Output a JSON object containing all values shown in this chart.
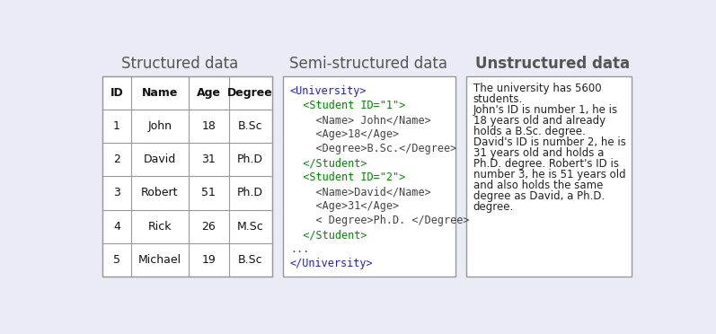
{
  "background_color": "#eaecf5",
  "title_structured": "Structured data",
  "title_semi": "Semi-structured data",
  "title_unstructured": "Unstructured data",
  "title_color": "#555555",
  "title_fontsize": 12,
  "table_headers": [
    "ID",
    "Name",
    "Age",
    "Degree"
  ],
  "table_rows": [
    [
      "1",
      "John",
      "18",
      "B.Sc"
    ],
    [
      "2",
      "David",
      "31",
      "Ph.D"
    ],
    [
      "3",
      "Robert",
      "51",
      "Ph.D"
    ],
    [
      "4",
      "Rick",
      "26",
      "M.Sc"
    ],
    [
      "5",
      "Michael",
      "19",
      "B.Sc"
    ]
  ],
  "xml_lines": [
    {
      "text": "<University>",
      "color": "#2222bb"
    },
    {
      "text": "  <Student ID=\"1\">",
      "color": "#008800"
    },
    {
      "text": "    <Name> John</Name>",
      "color": "#444444"
    },
    {
      "text": "    <Age>18</Age>",
      "color": "#444444"
    },
    {
      "text": "    <Degree>B.Sc.</Degree>",
      "color": "#444444"
    },
    {
      "text": "  </Student>",
      "color": "#008800"
    },
    {
      "text": "  <Student ID=\"2\">",
      "color": "#008800"
    },
    {
      "text": "    <Name>David</Name>",
      "color": "#444444"
    },
    {
      "text": "    <Age>31</Age>",
      "color": "#444444"
    },
    {
      "text": "    < Degree>Ph.D. </Degree>",
      "color": "#444444"
    },
    {
      "text": "  </Student>",
      "color": "#008800"
    },
    {
      "text": "...",
      "color": "#444444"
    },
    {
      "text": "</University>",
      "color": "#2222bb"
    }
  ],
  "unstructured_text": "The university has 5600\nstudents.\nJohn's ID is number 1, he is\n18 years old and already\nholds a B.Sc. degree.\nDavid's ID is number 2, he is\n31 years old and holds a\nPh.D. degree. Robert's ID is\nnumber 3, he is 51 years old\nand also holds the same\ndegree as David, a Ph.D.\ndegree.",
  "box_edge": "#999999",
  "text_fontsize": 8.5,
  "xml_fontsize": 8.5,
  "header_fontsize": 9,
  "cell_fontsize": 9
}
